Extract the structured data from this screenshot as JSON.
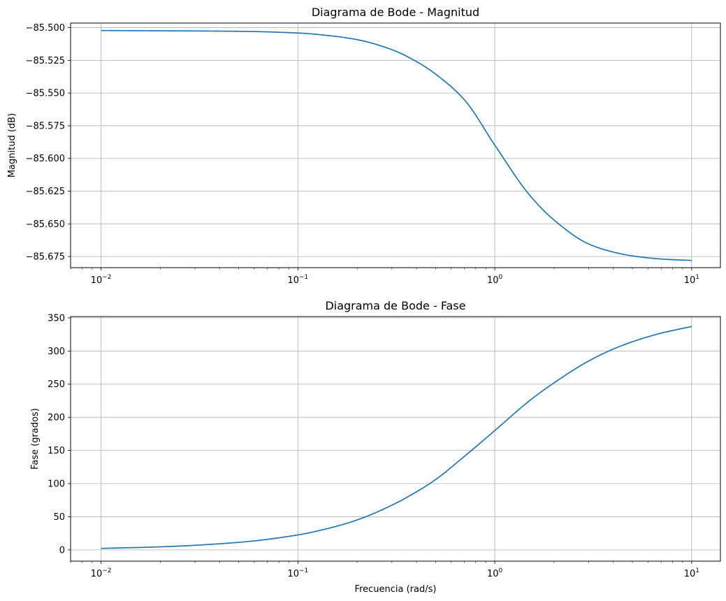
{
  "chart_data": [
    {
      "type": "line",
      "title": "Diagrama de Bode - Magnitud",
      "xlabel": "",
      "ylabel": "Magnitud (dB)",
      "xscale": "log",
      "xlim": [
        0.007,
        14
      ],
      "ylim": [
        -85.6835,
        -85.4965
      ],
      "xticks": [
        {
          "value": 0.01,
          "base": "10",
          "exp": "−2"
        },
        {
          "value": 0.1,
          "base": "10",
          "exp": "−1"
        },
        {
          "value": 1,
          "base": "10",
          "exp": "0"
        },
        {
          "value": 10,
          "base": "10",
          "exp": "1"
        }
      ],
      "yticks": [
        {
          "value": -85.5,
          "label": "−85.500"
        },
        {
          "value": -85.525,
          "label": "−85.525"
        },
        {
          "value": -85.55,
          "label": "−85.550"
        },
        {
          "value": -85.575,
          "label": "−85.575"
        },
        {
          "value": -85.6,
          "label": "−85.600"
        },
        {
          "value": -85.625,
          "label": "−85.625"
        },
        {
          "value": -85.65,
          "label": "−85.650"
        },
        {
          "value": -85.675,
          "label": "−85.675"
        }
      ],
      "grid": true,
      "series": [
        {
          "color": "#1f77b4",
          "x": [
            0.01,
            0.02,
            0.05,
            0.1,
            0.15,
            0.2,
            0.3,
            0.4,
            0.5,
            0.7,
            1.0,
            1.5,
            2.0,
            3.0,
            4.0,
            5.0,
            7.0,
            10.0
          ],
          "y": [
            -85.5022,
            -85.5024,
            -85.5028,
            -85.5041,
            -85.5064,
            -85.5092,
            -85.5168,
            -85.5259,
            -85.5355,
            -85.5551,
            -85.5898,
            -85.6279,
            -85.6471,
            -85.6654,
            -85.6716,
            -85.6745,
            -85.6769,
            -85.678
          ]
        }
      ]
    },
    {
      "type": "line",
      "title": "Diagrama de Bode - Fase",
      "xlabel": "Frecuencia (rad/s)",
      "ylabel": "Fase (grados)",
      "xscale": "log",
      "xlim": [
        0.007,
        14
      ],
      "ylim": [
        -17,
        352
      ],
      "xticks": [
        {
          "value": 0.01,
          "base": "10",
          "exp": "−2"
        },
        {
          "value": 0.1,
          "base": "10",
          "exp": "−1"
        },
        {
          "value": 1,
          "base": "10",
          "exp": "0"
        },
        {
          "value": 10,
          "base": "10",
          "exp": "1"
        }
      ],
      "yticks": [
        {
          "value": 0,
          "label": "0"
        },
        {
          "value": 50,
          "label": "50"
        },
        {
          "value": 100,
          "label": "100"
        },
        {
          "value": 150,
          "label": "150"
        },
        {
          "value": 200,
          "label": "200"
        },
        {
          "value": 250,
          "label": "250"
        },
        {
          "value": 300,
          "label": "300"
        },
        {
          "value": 350,
          "label": "350"
        }
      ],
      "grid": true,
      "series": [
        {
          "color": "#1f77b4",
          "x": [
            0.01,
            0.02,
            0.05,
            0.1,
            0.15,
            0.2,
            0.3,
            0.4,
            0.5,
            0.7,
            1.0,
            1.5,
            2.0,
            3.0,
            4.0,
            5.0,
            7.0,
            10.0
          ],
          "y": [
            2.3,
            4.6,
            11.4,
            22.6,
            34.1,
            45.2,
            67.4,
            87.6,
            106.0,
            141.0,
            180.0,
            225.0,
            252.0,
            285.0,
            303.0,
            314.0,
            327.0,
            337.0
          ]
        }
      ]
    }
  ]
}
